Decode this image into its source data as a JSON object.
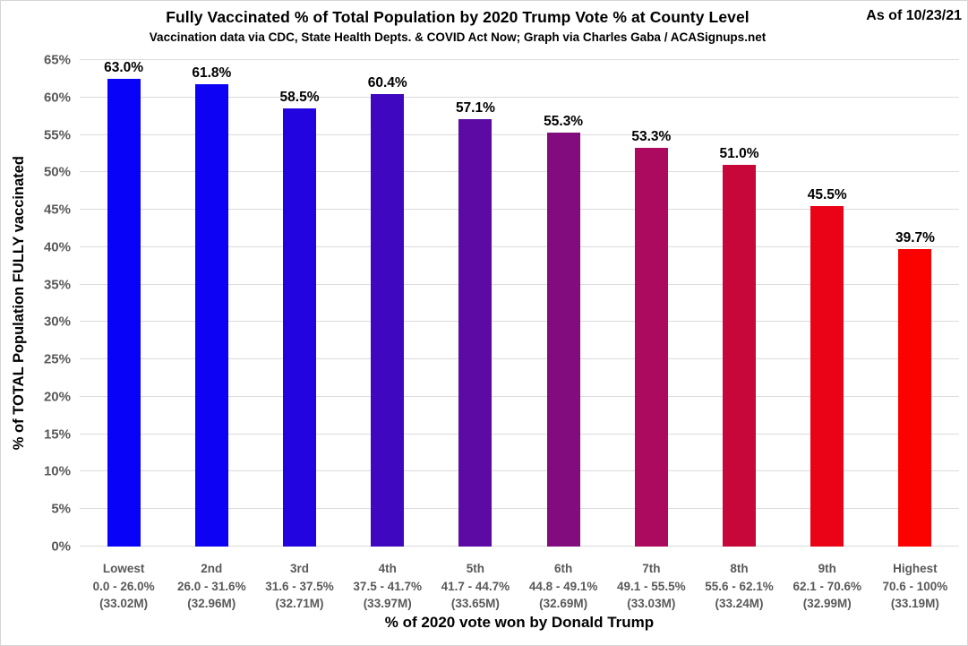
{
  "header": {
    "title": "Fully Vaccinated % of Total Population by 2020 Trump Vote % at County Level",
    "subtitle": "Vaccination data via CDC, State Health Depts. & COVID Act Now; Graph via Charles Gaba / ACASignups.net",
    "as_of": "As of 10/23/21"
  },
  "chart_data": {
    "type": "bar",
    "title": "Fully Vaccinated % of Total Population by 2020 Trump Vote % at County Level",
    "subtitle": "Vaccination data via CDC, State Health Depts. & COVID Act Now; Graph via Charles Gaba / ACASignups.net",
    "annotation": "As of 10/23/21",
    "xlabel": "% of 2020 vote won by Donald Trump",
    "ylabel": "% of TOTAL Population FULLY vaccinated",
    "ylim": [
      0,
      65
    ],
    "ytick_step": 5,
    "ytick_labels": [
      "0%",
      "5%",
      "10%",
      "15%",
      "20%",
      "25%",
      "30%",
      "35%",
      "40%",
      "45%",
      "50%",
      "55%",
      "60%",
      "65%"
    ],
    "grid": true,
    "legend": "none",
    "categories": [
      {
        "tier": "Lowest",
        "range": "0.0 - 26.0%",
        "population": "(33.02M)"
      },
      {
        "tier": "2nd",
        "range": "26.0 - 31.6%",
        "population": "(32.96M)"
      },
      {
        "tier": "3rd",
        "range": "31.6 - 37.5%",
        "population": "(32.71M)"
      },
      {
        "tier": "4th",
        "range": "37.5 - 41.7%",
        "population": "(33.97M)"
      },
      {
        "tier": "5th",
        "range": "41.7 - 44.7%",
        "population": "(33.65M)"
      },
      {
        "tier": "6th",
        "range": "44.8 - 49.1%",
        "population": "(32.69M)"
      },
      {
        "tier": "7th",
        "range": "49.1 - 55.5%",
        "population": "(33.03M)"
      },
      {
        "tier": "8th",
        "range": "55.6 - 62.1%",
        "population": "(33.24M)"
      },
      {
        "tier": "9th",
        "range": "62.1 - 70.6%",
        "population": "(32.99M)"
      },
      {
        "tier": "Highest",
        "range": "70.6 - 100%",
        "population": "(33.19M)"
      }
    ],
    "values": [
      63.0,
      61.8,
      58.5,
      60.4,
      57.1,
      55.3,
      53.3,
      51.0,
      45.5,
      39.7
    ],
    "value_labels": [
      "63.0%",
      "61.8%",
      "58.5%",
      "60.4%",
      "57.1%",
      "55.3%",
      "53.3%",
      "51.0%",
      "45.5%",
      "39.7%"
    ],
    "bar_colors": [
      "#0802f9",
      "#0d02f3",
      "#2104df",
      "#4007c0",
      "#5d09a3",
      "#820c7e",
      "#ac0a5e",
      "#c70639",
      "#ea0316",
      "#fb0201"
    ],
    "gridline_color": "#dcdcdc",
    "tick_color": "#595959"
  }
}
